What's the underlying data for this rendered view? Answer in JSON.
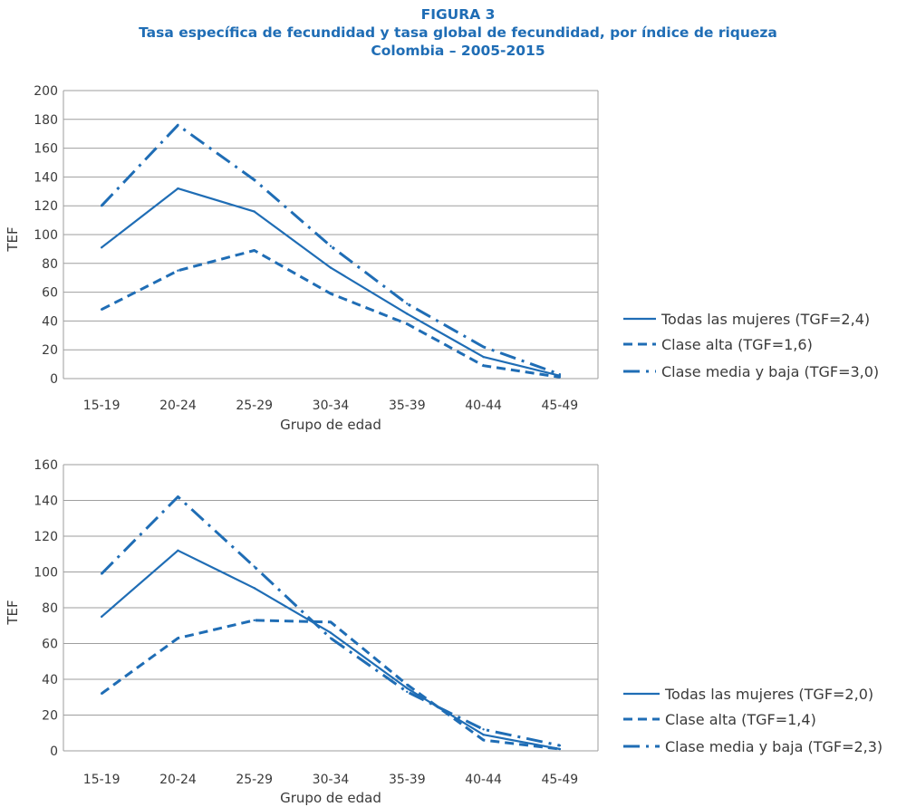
{
  "figure": {
    "label": "FIGURA 3",
    "title": "Tasa específica de fecundidad y tasa global de fecundidad,  por índice de riqueza",
    "subtitle": "Colombia – 2005-2015"
  },
  "colors": {
    "line": "#1f6db5",
    "grid": "#9e9e9e",
    "text": "#3a3a3a"
  },
  "chart_data": [
    {
      "type": "line",
      "categories": [
        "15-19",
        "20-24",
        "25-29",
        "30-34",
        "35-39",
        "40-44",
        "45-49"
      ],
      "xlabel": "Grupo de edad",
      "ylabel": "TEF",
      "ylim": [
        0,
        200
      ],
      "yticks": [
        "0",
        "20",
        "40",
        "60",
        "80",
        "100",
        "120",
        "140",
        "160",
        "180",
        "200"
      ],
      "grid": true,
      "legend_position": "right",
      "series": [
        {
          "name": "Todas las mujeres (TGF=2,4)",
          "style": "solid",
          "values": [
            91,
            132,
            116,
            77,
            45,
            15,
            2
          ]
        },
        {
          "name": "Clase alta (TGF=1,6)",
          "style": "dashed",
          "values": [
            48,
            75,
            89,
            59,
            38,
            9,
            1
          ]
        },
        {
          "name": "Clase media y baja (TGF=3,0)",
          "style": "dash-dot",
          "values": [
            120,
            176,
            138,
            92,
            52,
            22,
            3
          ]
        }
      ]
    },
    {
      "type": "line",
      "categories": [
        "15-19",
        "20-24",
        "25-29",
        "30-34",
        "35-39",
        "40-44",
        "45-49"
      ],
      "xlabel": "Grupo de edad",
      "ylabel": "TEF",
      "ylim": [
        0,
        160
      ],
      "yticks": [
        "0",
        "20",
        "40",
        "60",
        "80",
        "100",
        "120",
        "140",
        "160"
      ],
      "grid": true,
      "legend_position": "right",
      "series": [
        {
          "name": "Todas las mujeres (TGF=2,0)",
          "style": "solid",
          "values": [
            75,
            112,
            91,
            66,
            35,
            9,
            1
          ]
        },
        {
          "name": "Clase alta (TGF=1,4)",
          "style": "dashed",
          "values": [
            32,
            63,
            73,
            72,
            37,
            6,
            1
          ]
        },
        {
          "name": "Clase media y baja (TGF=2,3)",
          "style": "dash-dot",
          "values": [
            99,
            142,
            103,
            63,
            33,
            12,
            3
          ]
        }
      ]
    }
  ]
}
